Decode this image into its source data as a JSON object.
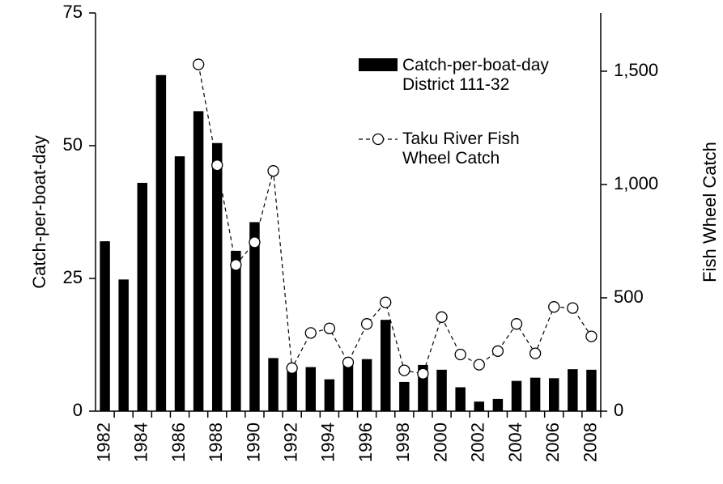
{
  "chart_data": {
    "type": "bar_line",
    "categories": [
      "1982",
      null,
      "1984",
      null,
      "1986",
      null,
      "1988",
      null,
      "1990",
      null,
      "1992",
      null,
      "1994",
      null,
      "1996",
      null,
      "1998",
      null,
      "2000",
      null,
      "2002",
      null,
      "2004",
      null,
      "2006",
      null,
      "2008"
    ],
    "series": [
      {
        "name": "Catch-per-boat-day District 111-32",
        "type": "bar",
        "color": "#000000",
        "values": [
          32,
          24.8,
          43,
          63.3,
          48,
          56.5,
          50.5,
          30.2,
          35.6,
          10,
          7.5,
          8.3,
          6,
          9,
          9.8,
          17.2,
          5.5,
          8.7,
          7.8,
          4.5,
          1.8,
          2.3,
          5.7,
          6.3,
          6.2,
          7.9,
          7.8
        ]
      },
      {
        "name": "Taku River Fish Wheel Catch",
        "type": "line",
        "axis": "y2",
        "color": "#000000",
        "values": [
          null,
          null,
          null,
          null,
          null,
          1530,
          1085,
          645,
          745,
          1060,
          190,
          345,
          365,
          215,
          385,
          480,
          180,
          165,
          415,
          250,
          205,
          265,
          385,
          255,
          460,
          455,
          330
        ]
      }
    ],
    "ylabel": "Catch-per-boat-day",
    "y2label": "Fish Wheel Catch",
    "ylim": [
      0,
      75
    ],
    "yticks": [
      0,
      25,
      50,
      75
    ],
    "y2lim": [
      0,
      1757
    ],
    "y2ticks": [
      0,
      500,
      {
        "value": 1000,
        "label": "1,000"
      },
      {
        "value": 1500,
        "label": "1,500"
      }
    ]
  }
}
